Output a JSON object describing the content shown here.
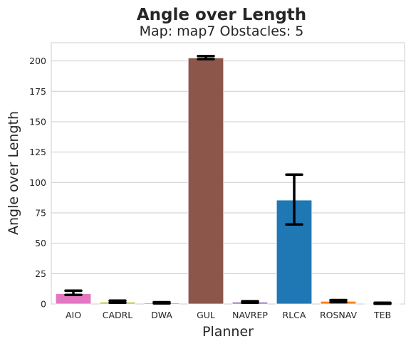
{
  "chart_data": {
    "type": "bar",
    "title": "Angle over Length",
    "subtitle": "Map: map7 Obstacles: 5",
    "xlabel": "Planner",
    "ylabel": "Angle over Length",
    "ylim": [
      0,
      215
    ],
    "yticks": [
      0,
      25,
      50,
      75,
      100,
      125,
      150,
      175,
      200
    ],
    "grid": "horizontal",
    "categories": [
      "AIO",
      "CADRL",
      "DWA",
      "GUL",
      "NAVREP",
      "RLCA",
      "ROSNAV",
      "TEB"
    ],
    "values": [
      8.5,
      1.5,
      0.8,
      202.5,
      1.5,
      85.5,
      2.2,
      0.5
    ],
    "error_low": [
      7.5,
      1.0,
      0.5,
      201.5,
      1.0,
      65.5,
      1.5,
      0.2
    ],
    "error_high": [
      11.0,
      2.8,
      1.5,
      204.0,
      2.3,
      106.5,
      3.2,
      1.0
    ],
    "colors": [
      "#e377c2",
      "#bcbd22",
      "#e15759",
      "#8c564b",
      "#9467bd",
      "#1f77b4",
      "#ff7f0e",
      "#17becf"
    ]
  }
}
